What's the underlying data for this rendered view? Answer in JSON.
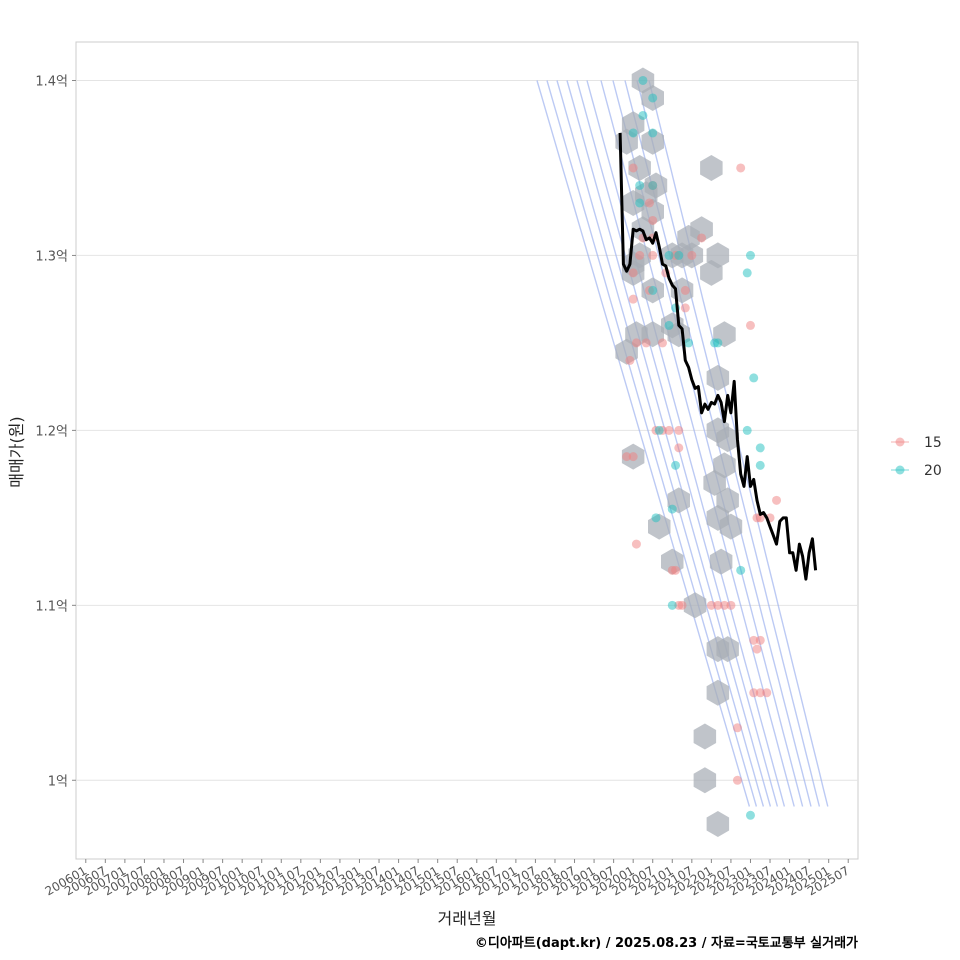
{
  "chart_data": {
    "type": "scatter",
    "xlabel": "거래년월",
    "ylabel": "매매가(원)",
    "caption": "©디아파트(dapt.kr) / 2025.08.23 / 자료=국토교통부 실거래가",
    "ylim": [
      0.955,
      1.422
    ],
    "y_ticks": [
      {
        "value": 1.0,
        "label": "1억"
      },
      {
        "value": 1.1,
        "label": "1.1억"
      },
      {
        "value": 1.2,
        "label": "1.2억"
      },
      {
        "value": 1.3,
        "label": "1.3억"
      },
      {
        "value": 1.4,
        "label": "1.4억"
      }
    ],
    "x_ticks": [
      "200601",
      "200607",
      "200701",
      "200707",
      "200801",
      "200807",
      "200901",
      "200907",
      "201001",
      "201007",
      "201101",
      "201107",
      "201201",
      "201207",
      "201301",
      "201307",
      "201401",
      "201407",
      "201501",
      "201507",
      "201601",
      "201607",
      "201701",
      "201707",
      "201801",
      "201807",
      "201901",
      "201907",
      "202001",
      "202007",
      "202101",
      "202107",
      "202201",
      "202207",
      "202301",
      "202307",
      "202401",
      "202407",
      "202501",
      "202507"
    ],
    "x_range_months": [
      -3,
      237
    ],
    "grid": true,
    "legend": {
      "position": "right",
      "title": "",
      "items": [
        {
          "label": "15",
          "color": "#f08080"
        },
        {
          "label": "20",
          "color": "#20c0c0"
        }
      ]
    },
    "series": [
      {
        "name": "15",
        "color": "#f08080",
        "points": [
          [
            "2020-01",
            1.35
          ],
          [
            "2020-01",
            1.29
          ],
          [
            "2020-03",
            1.3
          ],
          [
            "2020-01",
            1.275
          ],
          [
            "2019-12",
            1.24
          ],
          [
            "2020-02",
            1.25
          ],
          [
            "2020-04",
            1.31
          ],
          [
            "2020-05",
            1.25
          ],
          [
            "2020-07",
            1.3
          ],
          [
            "2020-07",
            1.31
          ],
          [
            "2020-07",
            1.32
          ],
          [
            "2020-06",
            1.33
          ],
          [
            "2020-11",
            1.29
          ],
          [
            "2020-06",
            1.28
          ],
          [
            "2020-07",
            1.34
          ],
          [
            "2020-10",
            1.25
          ],
          [
            "2021-02",
            1.3
          ],
          [
            "2021-05",
            1.28
          ],
          [
            "2021-05",
            1.27
          ],
          [
            "2021-07",
            1.3
          ],
          [
            "2021-10",
            1.31
          ],
          [
            "2020-08",
            1.2
          ],
          [
            "2020-10",
            1.2
          ],
          [
            "2020-12",
            1.2
          ],
          [
            "2021-03",
            1.2
          ],
          [
            "2021-03",
            1.19
          ],
          [
            "2021-01",
            1.12
          ],
          [
            "2021-02",
            1.12
          ],
          [
            "2021-04",
            1.1
          ],
          [
            "2021-03",
            1.1
          ],
          [
            "2022-01",
            1.1
          ],
          [
            "2022-03",
            1.1
          ],
          [
            "2022-05",
            1.1
          ],
          [
            "2022-07",
            1.1
          ],
          [
            "2022-10",
            1.35
          ],
          [
            "2023-01",
            1.26
          ],
          [
            "2022-09",
            1.03
          ],
          [
            "2022-09",
            1.0
          ],
          [
            "2023-02",
            1.08
          ],
          [
            "2023-04",
            1.08
          ],
          [
            "2023-03",
            1.075
          ],
          [
            "2023-02",
            1.05
          ],
          [
            "2023-04",
            1.05
          ],
          [
            "2023-06",
            1.05
          ],
          [
            "2023-03",
            1.15
          ],
          [
            "2023-04",
            1.15
          ],
          [
            "2023-07",
            1.15
          ],
          [
            "2023-09",
            1.16
          ],
          [
            "2020-01",
            1.185
          ],
          [
            "2019-11",
            1.185
          ],
          [
            "2020-02",
            1.135
          ]
        ]
      },
      {
        "name": "20",
        "color": "#20c0c0",
        "points": [
          [
            "2020-04",
            1.4
          ],
          [
            "2020-04",
            1.38
          ],
          [
            "2020-01",
            1.37
          ],
          [
            "2020-07",
            1.39
          ],
          [
            "2020-07",
            1.37
          ],
          [
            "2020-03",
            1.34
          ],
          [
            "2020-03",
            1.33
          ],
          [
            "2020-07",
            1.34
          ],
          [
            "2020-07",
            1.28
          ],
          [
            "2020-12",
            1.3
          ],
          [
            "2021-03",
            1.3
          ],
          [
            "2021-02",
            1.27
          ],
          [
            "2020-12",
            1.26
          ],
          [
            "2021-06",
            1.25
          ],
          [
            "2022-02",
            1.25
          ],
          [
            "2022-03",
            1.25
          ],
          [
            "2023-01",
            1.3
          ],
          [
            "2022-12",
            1.29
          ],
          [
            "2023-02",
            1.23
          ],
          [
            "2022-12",
            1.2
          ],
          [
            "2023-04",
            1.19
          ],
          [
            "2023-04",
            1.18
          ],
          [
            "2021-02",
            1.18
          ],
          [
            "2021-01",
            1.155
          ],
          [
            "2020-08",
            1.15
          ],
          [
            "2020-09",
            1.2
          ],
          [
            "2021-01",
            1.1
          ],
          [
            "2022-10",
            1.12
          ],
          [
            "2023-01",
            0.98
          ]
        ]
      }
    ],
    "average_line": {
      "name": "평균",
      "color": "#000000",
      "points": [
        [
          "2019-09",
          1.37
        ],
        [
          "2019-10",
          1.295
        ],
        [
          "2019-11",
          1.291
        ],
        [
          "2019-12",
          1.295
        ],
        [
          "2020-01",
          1.315
        ],
        [
          "2020-02",
          1.314
        ],
        [
          "2020-03",
          1.315
        ],
        [
          "2020-04",
          1.314
        ],
        [
          "2020-05",
          1.309
        ],
        [
          "2020-06",
          1.31
        ],
        [
          "2020-07",
          1.307
        ],
        [
          "2020-08",
          1.313
        ],
        [
          "2020-09",
          1.305
        ],
        [
          "2020-10",
          1.295
        ],
        [
          "2020-11",
          1.294
        ],
        [
          "2020-12",
          1.287
        ],
        [
          "2021-01",
          1.283
        ],
        [
          "2021-02",
          1.281
        ],
        [
          "2021-03",
          1.26
        ],
        [
          "2021-04",
          1.258
        ],
        [
          "2021-05",
          1.24
        ],
        [
          "2021-06",
          1.236
        ],
        [
          "2021-07",
          1.229
        ],
        [
          "2021-08",
          1.224
        ],
        [
          "2021-09",
          1.225
        ],
        [
          "2021-10",
          1.21
        ],
        [
          "2021-11",
          1.215
        ],
        [
          "2021-12",
          1.212
        ],
        [
          "2022-01",
          1.216
        ],
        [
          "2022-02",
          1.215
        ],
        [
          "2022-03",
          1.22
        ],
        [
          "2022-04",
          1.216
        ],
        [
          "2022-05",
          1.205
        ],
        [
          "2022-06",
          1.22
        ],
        [
          "2022-07",
          1.21
        ],
        [
          "2022-08",
          1.228
        ],
        [
          "2022-09",
          1.195
        ],
        [
          "2022-10",
          1.175
        ],
        [
          "2022-11",
          1.168
        ],
        [
          "2022-12",
          1.185
        ],
        [
          "2023-01",
          1.168
        ],
        [
          "2023-02",
          1.172
        ],
        [
          "2023-03",
          1.16
        ],
        [
          "2023-04",
          1.152
        ],
        [
          "2023-05",
          1.153
        ],
        [
          "2023-06",
          1.15
        ],
        [
          "2023-07",
          1.145
        ],
        [
          "2023-08",
          1.14
        ],
        [
          "2023-09",
          1.135
        ],
        [
          "2023-10",
          1.148
        ],
        [
          "2023-11",
          1.15
        ],
        [
          "2023-12",
          1.15
        ],
        [
          "2024-01",
          1.13
        ],
        [
          "2024-02",
          1.13
        ],
        [
          "2024-03",
          1.12
        ],
        [
          "2024-04",
          1.135
        ],
        [
          "2024-05",
          1.128
        ],
        [
          "2024-06",
          1.115
        ],
        [
          "2024-07",
          1.13
        ],
        [
          "2024-08",
          1.138
        ],
        [
          "2024-09",
          1.12
        ]
      ]
    },
    "hexbins": [
      [
        "2020-04",
        1.4
      ],
      [
        "2020-07",
        1.39
      ],
      [
        "2020-01",
        1.375
      ],
      [
        "2020-07",
        1.365
      ],
      [
        "2019-11",
        1.365
      ],
      [
        "2020-03",
        1.35
      ],
      [
        "2020-05",
        1.335
      ],
      [
        "2020-08",
        1.34
      ],
      [
        "2020-01",
        1.33
      ],
      [
        "2020-07",
        1.325
      ],
      [
        "2020-04",
        1.315
      ],
      [
        "2020-01",
        1.295
      ],
      [
        "2020-03",
        1.3
      ],
      [
        "2021-01",
        1.3
      ],
      [
        "2021-04",
        1.3
      ],
      [
        "2021-07",
        1.3
      ],
      [
        "2020-01",
        1.29
      ],
      [
        "2020-07",
        1.28
      ],
      [
        "2021-04",
        1.28
      ],
      [
        "2021-06",
        1.31
      ],
      [
        "2021-10",
        1.315
      ],
      [
        "2022-01",
        1.35
      ],
      [
        "2022-03",
        1.3
      ],
      [
        "2022-01",
        1.29
      ],
      [
        "2022-05",
        1.255
      ],
      [
        "2022-03",
        1.23
      ],
      [
        "2020-02",
        1.255
      ],
      [
        "2020-07",
        1.255
      ],
      [
        "2021-01",
        1.26
      ],
      [
        "2021-03",
        1.255
      ],
      [
        "2019-11",
        1.245
      ],
      [
        "2020-01",
        1.185
      ],
      [
        "2020-09",
        1.145
      ],
      [
        "2021-01",
        1.125
      ],
      [
        "2021-03",
        1.16
      ],
      [
        "2022-03",
        1.2
      ],
      [
        "2022-06",
        1.195
      ],
      [
        "2022-05",
        1.18
      ],
      [
        "2022-06",
        1.16
      ],
      [
        "2021-08",
        1.1
      ],
      [
        "2022-02",
        1.17
      ],
      [
        "2022-03",
        1.15
      ],
      [
        "2022-07",
        1.145
      ],
      [
        "2022-04",
        1.125
      ],
      [
        "2022-03",
        1.075
      ],
      [
        "2022-06",
        1.075
      ],
      [
        "2022-03",
        1.05
      ],
      [
        "2021-11",
        1.025
      ],
      [
        "2021-11",
        1.0
      ],
      [
        "2022-03",
        0.975
      ]
    ],
    "contours_note": "density contours"
  }
}
